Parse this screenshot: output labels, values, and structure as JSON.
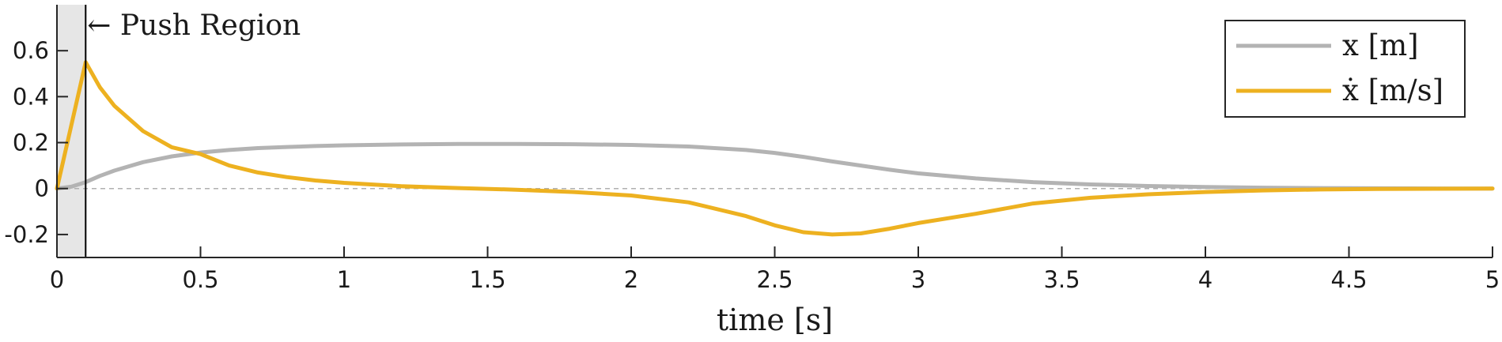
{
  "chart_data": {
    "type": "line",
    "xlabel": "time [s]",
    "ylabel": "",
    "xlim": [
      0,
      5
    ],
    "ylim": [
      -0.3,
      0.8
    ],
    "xticks": [
      "0",
      "0.5",
      "1",
      "1.5",
      "2",
      "2.5",
      "3",
      "3.5",
      "4",
      "4.5",
      "5"
    ],
    "yticks": [
      "-0.2",
      "0",
      "0.2",
      "0.4",
      "0.6"
    ],
    "grid": false,
    "zero_line": {
      "style": "dashed",
      "color": "#b0b0b0"
    },
    "legend": {
      "placement": "top-right"
    },
    "push_region": {
      "x_range": [
        0,
        0.1
      ],
      "label": "← Push Region",
      "fill": "#e6e6e6"
    },
    "series": [
      {
        "name": "x [m]",
        "color": "#b3b3b3",
        "x": [
          0,
          0.05,
          0.1,
          0.15,
          0.2,
          0.3,
          0.4,
          0.5,
          0.6,
          0.7,
          0.8,
          0.9,
          1.0,
          1.2,
          1.4,
          1.6,
          1.8,
          2.0,
          2.2,
          2.4,
          2.5,
          2.6,
          2.7,
          2.8,
          2.9,
          3.0,
          3.2,
          3.4,
          3.6,
          3.8,
          4.0,
          4.2,
          4.4,
          4.6,
          4.8,
          5.0
        ],
        "values": [
          0,
          0.008,
          0.028,
          0.055,
          0.078,
          0.115,
          0.14,
          0.157,
          0.168,
          0.176,
          0.181,
          0.185,
          0.188,
          0.192,
          0.194,
          0.194,
          0.193,
          0.19,
          0.183,
          0.168,
          0.155,
          0.138,
          0.118,
          0.1,
          0.082,
          0.066,
          0.044,
          0.028,
          0.018,
          0.011,
          0.007,
          0.004,
          0.002,
          0.001,
          0.0005,
          0
        ]
      },
      {
        "name": "ẋ [m/s]",
        "color": "#edb120",
        "x": [
          0,
          0.1,
          0.15,
          0.2,
          0.3,
          0.4,
          0.5,
          0.6,
          0.7,
          0.8,
          0.9,
          1.0,
          1.2,
          1.4,
          1.6,
          1.8,
          2.0,
          2.2,
          2.4,
          2.5,
          2.6,
          2.7,
          2.8,
          2.9,
          3.0,
          3.2,
          3.4,
          3.6,
          3.8,
          4.0,
          4.2,
          4.4,
          4.6,
          4.8,
          5.0
        ],
        "values": [
          0,
          0.55,
          0.44,
          0.36,
          0.25,
          0.18,
          0.15,
          0.1,
          0.07,
          0.05,
          0.035,
          0.025,
          0.01,
          0.002,
          -0.005,
          -0.015,
          -0.03,
          -0.06,
          -0.12,
          -0.16,
          -0.19,
          -0.2,
          -0.195,
          -0.175,
          -0.15,
          -0.11,
          -0.065,
          -0.04,
          -0.025,
          -0.015,
          -0.008,
          -0.004,
          -0.002,
          -0.001,
          0
        ]
      }
    ]
  }
}
